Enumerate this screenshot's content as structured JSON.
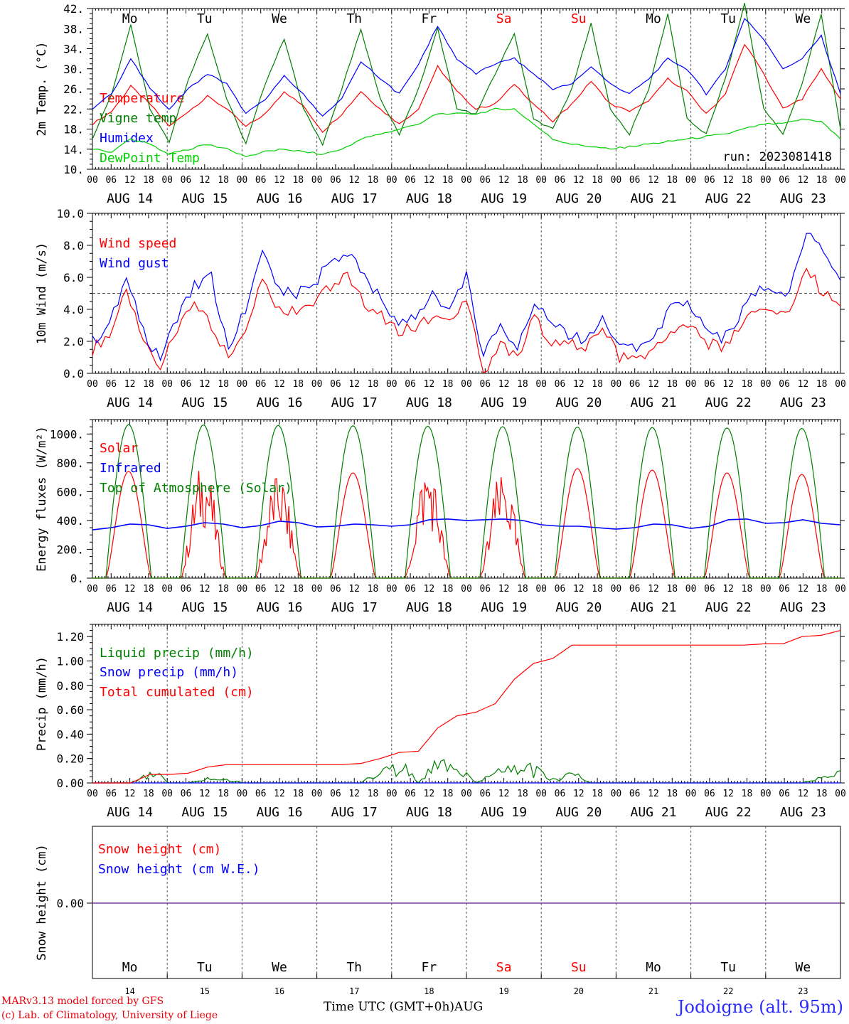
{
  "footer": {
    "model_line": "MARv3.13 model forced by GFS",
    "copyright_line": "(c) Lab. of Climatology, University of Liege",
    "time_axis_label": "Time UTC (GMT+0h)AUG",
    "station": "Jodoigne (alt. 95m)"
  },
  "day_names": [
    "Mo",
    "Tu",
    "We",
    "Th",
    "Fr",
    "Sa",
    "Su",
    "Mo",
    "Tu",
    "We"
  ],
  "weekend_flags": [
    false,
    false,
    false,
    false,
    false,
    true,
    true,
    false,
    false,
    false
  ],
  "date_labels": [
    "AUG 14",
    "AUG 15",
    "AUG 16",
    "AUG 17",
    "AUG 18",
    "AUG 19",
    "AUG 20",
    "AUG 21",
    "AUG 22",
    "AUG 23"
  ],
  "day_numbers": [
    "14",
    "15",
    "16",
    "17",
    "18",
    "19",
    "20",
    "21",
    "22",
    "23"
  ],
  "hour_ticks": [
    "00",
    "06",
    "12",
    "18"
  ],
  "final_hour_tick": "00",
  "colors": {
    "red": "#ff0000",
    "blue": "#0000ff",
    "green": "#008000",
    "light_green": "#00d000",
    "purple": "#7a30a0"
  },
  "chart_data": [
    {
      "type": "line",
      "ylabel": "2m Temp. (°C)",
      "ylim": [
        10,
        42
      ],
      "yticks": [
        "10.",
        "14.",
        "18.",
        "22.",
        "26.",
        "30.",
        "34.",
        "38.",
        "42."
      ],
      "annotation": "run: 2023081418",
      "series": [
        {
          "name": "Temperature",
          "color": "#ff0000",
          "values": [
            19,
            21.5,
            26.5,
            23,
            18.5,
            21.5,
            24.5,
            22,
            18.5,
            21,
            25.5,
            22.5,
            17.5,
            21,
            25.5,
            22,
            19,
            22,
            30.5,
            25.5,
            22,
            23,
            27,
            23,
            19.5,
            23,
            27.5,
            23,
            21.5,
            23.5,
            28,
            25.5,
            21,
            25,
            35,
            29,
            22,
            24,
            30,
            24
          ]
        },
        {
          "name": "Vigne temp",
          "color": "#008000",
          "values": [
            16,
            25,
            39,
            22,
            15.5,
            28,
            37,
            24,
            15,
            27,
            36,
            22,
            15,
            26,
            38,
            24,
            17,
            26,
            38,
            22,
            21,
            29,
            37,
            20,
            18,
            26,
            39,
            22,
            17,
            26,
            41,
            20,
            17,
            28,
            43,
            22,
            17,
            27,
            41,
            18
          ]
        },
        {
          "name": "Humidex",
          "color": "#0000ff",
          "values": [
            22,
            25,
            32,
            26,
            22,
            26,
            29,
            27,
            21,
            24,
            28.5,
            25,
            20.5,
            24,
            31.5,
            28,
            25,
            31,
            38.5,
            32,
            29,
            31,
            32,
            29,
            26,
            27,
            30.5,
            27,
            25,
            28,
            32,
            30,
            25,
            30,
            40,
            36,
            30,
            32,
            36.5,
            25
          ]
        },
        {
          "name": "DewPoint Temp",
          "color": "#00d000",
          "values": [
            14,
            13.5,
            16,
            15,
            13,
            14,
            15,
            14,
            12.5,
            13.5,
            14,
            13.5,
            13,
            14,
            16,
            17,
            18,
            19,
            21,
            21,
            21,
            22,
            22,
            19,
            16,
            15,
            14.5,
            14,
            14.5,
            15,
            15.5,
            16,
            16.5,
            17,
            18,
            19,
            19,
            20,
            19.5,
            16
          ]
        }
      ]
    },
    {
      "type": "line",
      "ylabel": "10m Wind (m/s)",
      "ylim": [
        0,
        10
      ],
      "yticks": [
        "0.0",
        "2.0",
        "4.0",
        "6.0",
        "8.0",
        "10.0"
      ],
      "reference_line": 5,
      "series": [
        {
          "name": "Wind speed",
          "color": "#ff0000",
          "values": [
            1.5,
            2.5,
            5,
            2,
            0.5,
            2.5,
            4.5,
            3,
            1,
            3,
            6,
            4,
            4,
            4.5,
            5.5,
            6,
            4.5,
            3.5,
            2.5,
            3,
            3.5,
            3,
            4.5,
            0,
            2,
            1,
            3.5,
            2,
            2,
            1.5,
            3,
            1,
            1,
            1.5,
            2.5,
            3,
            2,
            1.5,
            3,
            4,
            4,
            4,
            6.5,
            5,
            4.2
          ]
        },
        {
          "name": "Wind gust",
          "color": "#0000ff",
          "values": [
            2,
            3,
            6,
            2.5,
            1,
            3.5,
            5.5,
            6,
            1.5,
            4,
            7.5,
            5,
            5,
            5.5,
            7,
            7.5,
            6,
            4.5,
            3,
            3.5,
            5,
            4,
            6,
            1,
            3,
            1.5,
            4.5,
            3,
            2.5,
            2,
            3.5,
            1.5,
            1.5,
            2,
            4,
            4.5,
            3,
            2,
            3.5,
            5,
            5.5,
            5,
            9,
            7.5,
            5.8
          ]
        }
      ]
    },
    {
      "type": "line",
      "ylabel": "Energy fluxes (W/m²)",
      "ylim": [
        0,
        1100
      ],
      "yticks": [
        "0.",
        "200.",
        "400.",
        "600.",
        "800.",
        "1000."
      ],
      "series": [
        {
          "name": "Solar",
          "color": "#ff0000",
          "day_peaks": [
            740,
            750,
            690,
            730,
            740,
            700,
            760,
            750,
            730,
            720
          ]
        },
        {
          "name": "Infrared",
          "color": "#0000ff",
          "values": [
            335,
            350,
            375,
            370,
            345,
            360,
            385,
            375,
            350,
            365,
            395,
            385,
            355,
            360,
            375,
            370,
            360,
            370,
            405,
            410,
            400,
            405,
            410,
            400,
            370,
            360,
            360,
            350,
            340,
            350,
            375,
            370,
            345,
            360,
            405,
            410,
            380,
            385,
            405,
            380,
            370
          ]
        },
        {
          "name": "Top of Atmosphere (Solar)",
          "color": "#008000",
          "day_peaks": [
            1065,
            1063,
            1060,
            1057,
            1054,
            1051,
            1048,
            1045,
            1042,
            1039
          ]
        }
      ]
    },
    {
      "type": "line",
      "ylabel": "Precip (mm/h)",
      "ylim": [
        0,
        1.3
      ],
      "yticks": [
        "0.00",
        "0.20",
        "0.40",
        "0.60",
        "0.80",
        "1.00",
        "1.20"
      ],
      "series": [
        {
          "name": "Liquid precip (mm/h)",
          "color": "#008000",
          "values": [
            0,
            0,
            0,
            0.12,
            0,
            0,
            0.05,
            0.03,
            0,
            0,
            0,
            0,
            0,
            0,
            0,
            0.1,
            0.18,
            0,
            0.25,
            0.15,
            0,
            0.1,
            0.18,
            0.12,
            0.03,
            0.1,
            0,
            0,
            0,
            0,
            0,
            0,
            0,
            0,
            0,
            0,
            0,
            0,
            0.05,
            0.1
          ]
        },
        {
          "name": "Snow precip (mm/h)",
          "color": "#0000ff",
          "values": [
            0,
            0,
            0,
            0,
            0,
            0,
            0,
            0,
            0,
            0,
            0,
            0,
            0,
            0,
            0,
            0,
            0,
            0,
            0,
            0,
            0,
            0,
            0,
            0,
            0,
            0,
            0,
            0,
            0,
            0,
            0,
            0,
            0,
            0,
            0,
            0,
            0,
            0,
            0,
            0
          ]
        },
        {
          "name": "Total cumulated (cm)",
          "color": "#ff0000",
          "values": [
            0,
            0,
            0,
            0.07,
            0.07,
            0.08,
            0.13,
            0.15,
            0.15,
            0.15,
            0.15,
            0.15,
            0.15,
            0.15,
            0.16,
            0.2,
            0.25,
            0.26,
            0.45,
            0.55,
            0.58,
            0.65,
            0.85,
            0.98,
            1.02,
            1.13,
            1.13,
            1.13,
            1.13,
            1.13,
            1.13,
            1.13,
            1.13,
            1.13,
            1.13,
            1.14,
            1.14,
            1.2,
            1.21,
            1.25
          ]
        }
      ]
    },
    {
      "type": "line",
      "ylabel": "Snow height (cm)",
      "yticks": [
        "0.00"
      ],
      "series": [
        {
          "name": "Snow height (cm)",
          "color": "#ff0000",
          "values": [
            0,
            0,
            0,
            0,
            0,
            0,
            0,
            0,
            0,
            0,
            0
          ]
        },
        {
          "name": "Snow height (cm W.E.)",
          "color": "#0000ff",
          "values": [
            0,
            0,
            0,
            0,
            0,
            0,
            0,
            0,
            0,
            0,
            0
          ]
        }
      ]
    }
  ]
}
